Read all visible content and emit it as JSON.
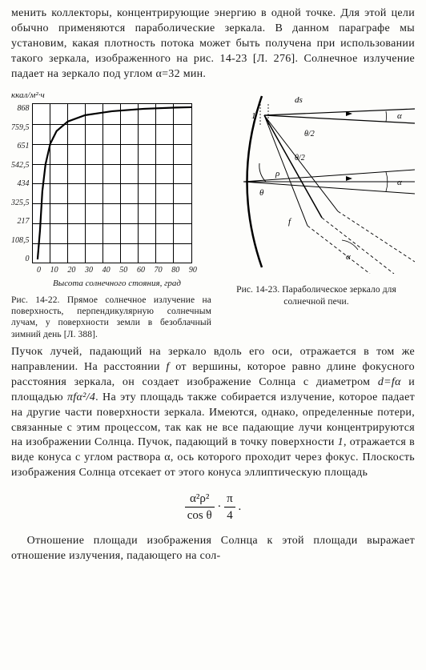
{
  "para1": "менить коллекторы, концентрирующие энергию в одной точке. Для этой цели обычно применяются параболические зеркала. В данном параграфе мы установим, какая плотность потока может быть получена при использовании такого зеркала, изображенного на рис. 14-23 [Л. 276]. Солнечное излучение падает на зеркало под углом α=32 мин.",
  "chart": {
    "ylabel": "ккал/м²·ч",
    "xlabel": "Высота солнечного стояния, град",
    "yticks": [
      "868",
      "759,5",
      "651",
      "542,5",
      "434",
      "325,5",
      "217",
      "108,5",
      "0"
    ],
    "xticks": [
      "0",
      "10",
      "20",
      "30",
      "40",
      "50",
      "60",
      "70",
      "80",
      "90"
    ],
    "grid_color": "#000000",
    "curve_color": "#000000",
    "curve_width": 2.2,
    "curve_points": [
      [
        0.03,
        0.98
      ],
      [
        0.045,
        0.8
      ],
      [
        0.06,
        0.55
      ],
      [
        0.08,
        0.38
      ],
      [
        0.11,
        0.25
      ],
      [
        0.15,
        0.17
      ],
      [
        0.22,
        0.11
      ],
      [
        0.33,
        0.07
      ],
      [
        0.5,
        0.045
      ],
      [
        0.7,
        0.03
      ],
      [
        0.9,
        0.022
      ],
      [
        1.0,
        0.02
      ]
    ]
  },
  "diagram": {
    "labels": {
      "ds": "ds",
      "one": "1",
      "theta_half_1": "θ/2",
      "theta_half_2": "θ/2",
      "rho": "ρ",
      "theta": "θ",
      "f": "f",
      "alpha1": "α",
      "alpha2": "α",
      "alpha3": "α"
    },
    "curve_color": "#000000",
    "line_color": "#000000"
  },
  "caption_left": "Рис. 14-22. Прямое солнечное излучение на поверхность, перпендикулярную солнечным лучам, у поверхности земли в безоблачный зимний день [Л. 388].",
  "caption_right": "Рис. 14-23. Параболическое зеркало для солнечной печи.",
  "para2_parts": {
    "a": "Пучок лучей, падающий на зеркало вдоль его оси, отражается в том же направлении. На расстоянии ",
    "b": " от вершины, которое равно длине фокусного расстояния зеркала, он создает изображение Солнца с диаметром ",
    "c": " и площадью ",
    "d": ". На эту площадь также собирается излучение, которое падает на другие части поверхности зеркала. Имеются, однако, определенные потери, связанные с этим процессом, так как не все падающие лучи концентрируются на изображении Солнца. Пучок, падающий в точку поверхности ",
    "e": ", отражается в виде конуса с углом раствора α, ось которого проходит через фокус. Плоскость изображения Солнца отсекает от этого конуса эллиптическую площадь",
    "f_sym": "f",
    "d_eq": "d=fα",
    "area": "πfα²/4",
    "one": "1"
  },
  "formula": {
    "num1": "α²ρ²",
    "den1": "cos θ",
    "num2": "π",
    "den2": "4"
  },
  "para3": "Отношение площади изображения Солнца к этой площади выражает отношение излучения, падающего на сол-"
}
